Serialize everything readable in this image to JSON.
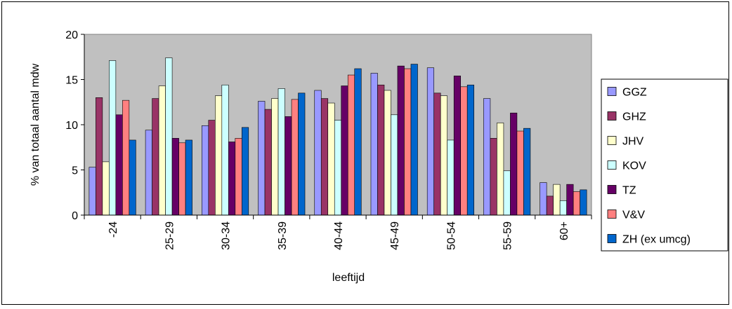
{
  "chart_data": {
    "type": "bar",
    "title": "",
    "xlabel": "leeftijd",
    "ylabel": "% van totaal aantal mdw",
    "ylim": [
      0,
      20
    ],
    "yticks": [
      0,
      5,
      10,
      15,
      20
    ],
    "grid": false,
    "legend_position": "right",
    "categories": [
      "-24",
      "25-29",
      "30-34",
      "35-39",
      "40-44",
      "45-49",
      "50-54",
      "55-59",
      "60+"
    ],
    "series": [
      {
        "name": "GGZ",
        "color": "#9999ff",
        "values": [
          5.3,
          9.4,
          9.9,
          12.6,
          13.8,
          15.7,
          16.3,
          12.9,
          3.6
        ]
      },
      {
        "name": "GHZ",
        "color": "#993366",
        "values": [
          13.0,
          12.9,
          10.5,
          11.7,
          12.9,
          14.4,
          13.5,
          8.5,
          2.1
        ]
      },
      {
        "name": "JHV",
        "color": "#ffffcc",
        "values": [
          5.9,
          14.3,
          13.2,
          12.9,
          12.4,
          13.8,
          13.2,
          10.2,
          3.4
        ]
      },
      {
        "name": "KOV",
        "color": "#ccffff",
        "values": [
          17.1,
          17.4,
          14.4,
          14.0,
          10.5,
          11.1,
          8.3,
          4.9,
          1.6
        ]
      },
      {
        "name": "TZ",
        "color": "#660066",
        "values": [
          11.1,
          8.5,
          8.1,
          10.9,
          14.3,
          16.5,
          15.4,
          11.3,
          3.4
        ]
      },
      {
        "name": "V&V",
        "color": "#ff8080",
        "values": [
          12.7,
          8.0,
          8.5,
          12.8,
          15.5,
          16.2,
          14.2,
          9.3,
          2.6
        ]
      },
      {
        "name": "ZH (ex umcg)",
        "color": "#0066cc",
        "values": [
          8.3,
          8.3,
          9.7,
          13.5,
          16.2,
          16.7,
          14.4,
          9.6,
          2.8
        ]
      }
    ]
  }
}
